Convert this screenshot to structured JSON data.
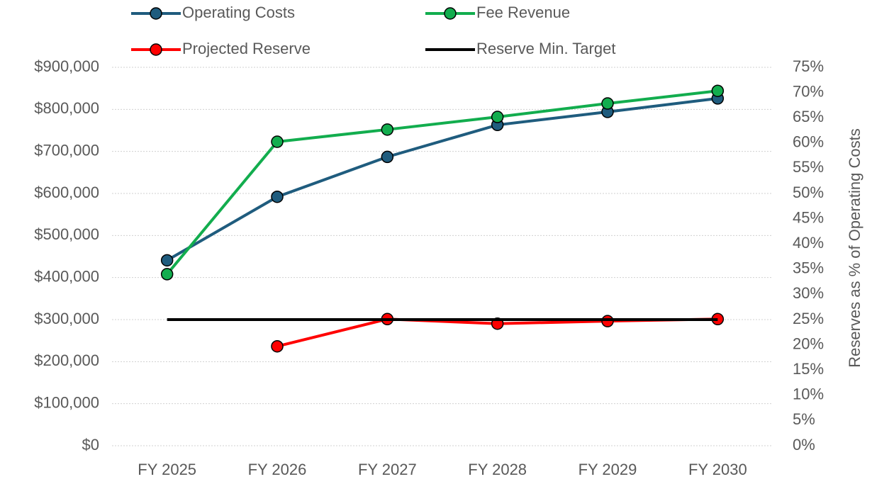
{
  "chart_data": {
    "type": "line",
    "categories": [
      "FY 2025",
      "FY 2026",
      "FY 2027",
      "FY 2028",
      "FY 2029",
      "FY 2030"
    ],
    "series": [
      {
        "name": "Operating Costs",
        "color": "#1f5c7e",
        "marker": true,
        "values": [
          441000,
          592000,
          687000,
          763000,
          794000,
          826000
        ]
      },
      {
        "name": "Fee Revenue",
        "color": "#12ad4e",
        "marker": true,
        "values": [
          408000,
          723000,
          752000,
          782000,
          814000,
          844000
        ]
      },
      {
        "name": "Projected Reserve",
        "color": "#ff0000",
        "marker": true,
        "axis": "y2",
        "values": [
          null,
          19.7,
          25.1,
          24.2,
          24.7,
          25.1
        ]
      },
      {
        "name": "Reserve Min. Target",
        "color": "#000000",
        "marker": false,
        "axis": "y2",
        "values": [
          25,
          25,
          25,
          25,
          25,
          25
        ]
      }
    ],
    "ylim": [
      0,
      900000
    ],
    "yticks": [
      {
        "value": 0,
        "label": "$0"
      },
      {
        "value": 100000,
        "label": "$100,000"
      },
      {
        "value": 200000,
        "label": "$200,000"
      },
      {
        "value": 300000,
        "label": "$300,000"
      },
      {
        "value": 400000,
        "label": "$400,000"
      },
      {
        "value": 500000,
        "label": "$500,000"
      },
      {
        "value": 600000,
        "label": "$600,000"
      },
      {
        "value": 700000,
        "label": "$700,000"
      },
      {
        "value": 800000,
        "label": "$800,000"
      },
      {
        "value": 900000,
        "label": "$900,000"
      }
    ],
    "y2label": "Reserves as % of Operating Costs",
    "y2lim": [
      0,
      75
    ],
    "y2ticks": [
      {
        "value": 0,
        "label": "0%"
      },
      {
        "value": 5,
        "label": "5%"
      },
      {
        "value": 10,
        "label": "10%"
      },
      {
        "value": 15,
        "label": "15%"
      },
      {
        "value": 20,
        "label": "20%"
      },
      {
        "value": 25,
        "label": "25%"
      },
      {
        "value": 30,
        "label": "30%"
      },
      {
        "value": 35,
        "label": "35%"
      },
      {
        "value": 40,
        "label": "40%"
      },
      {
        "value": 45,
        "label": "45%"
      },
      {
        "value": 50,
        "label": "50%"
      },
      {
        "value": 55,
        "label": "55%"
      },
      {
        "value": 60,
        "label": "60%"
      },
      {
        "value": 65,
        "label": "65%"
      },
      {
        "value": 70,
        "label": "70%"
      },
      {
        "value": 75,
        "label": "75%"
      }
    ],
    "grid": true,
    "legend": "top"
  }
}
